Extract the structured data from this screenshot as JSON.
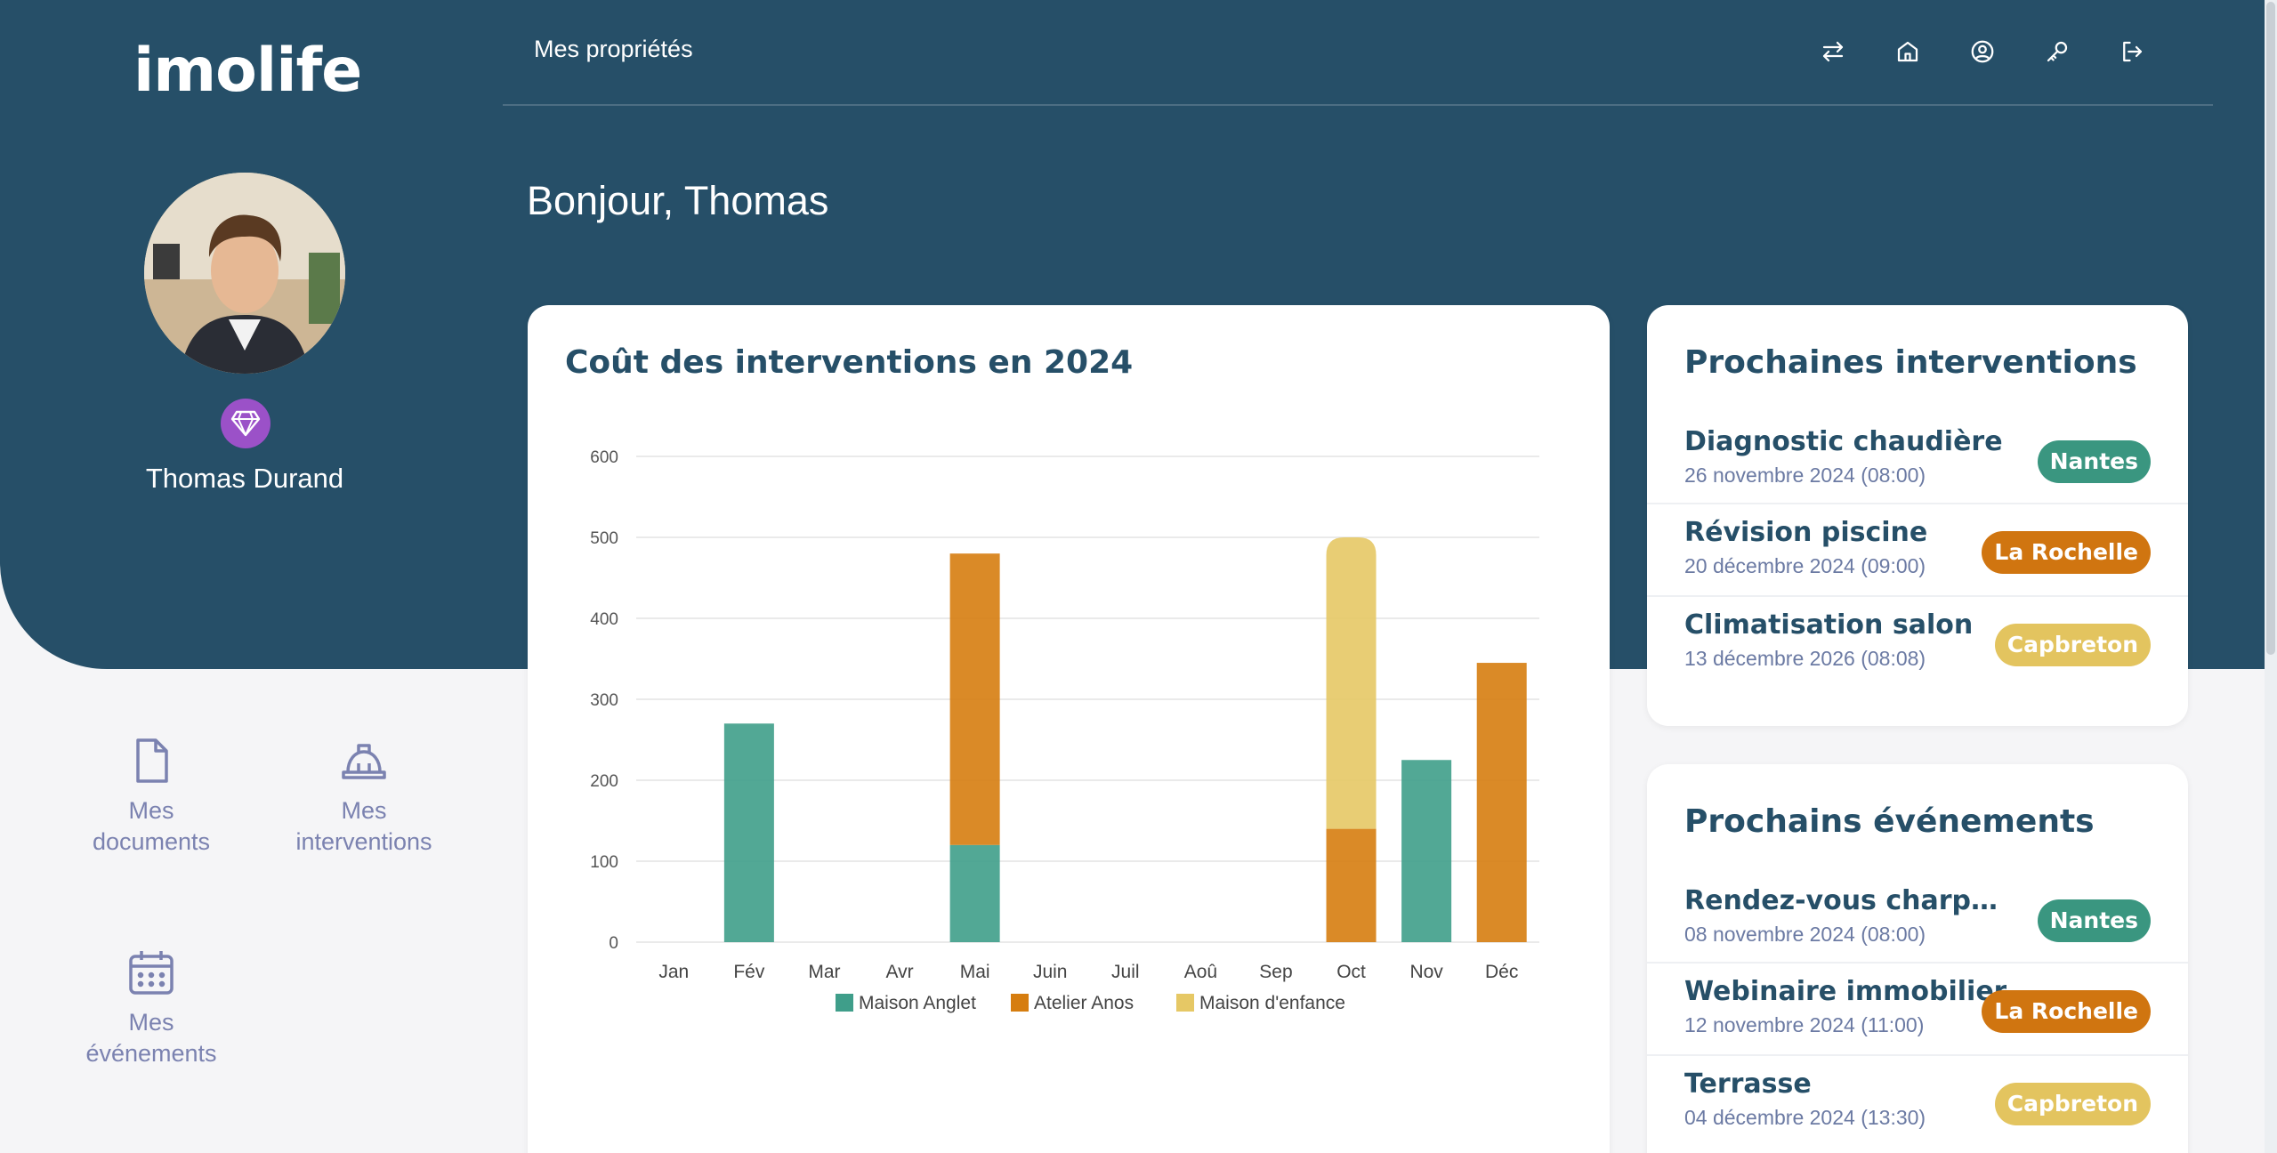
{
  "brand": {
    "logo_text": "imolife"
  },
  "user": {
    "name": "Thomas Durand"
  },
  "topnav": {
    "title": "Mes propriétés",
    "icons": [
      "swap-icon",
      "home-icon",
      "account-icon",
      "key-icon",
      "logout-icon"
    ]
  },
  "greeting": "Bonjour, Thomas",
  "sidebar": {
    "items": [
      {
        "label_line1": "Mes",
        "label_line2": "documents",
        "icon": "document-icon"
      },
      {
        "label_line1": "Mes",
        "label_line2": "interventions",
        "icon": "hard-hat-icon"
      },
      {
        "label_line1": "Mes",
        "label_line2": "événements",
        "icon": "calendar-icon"
      }
    ]
  },
  "chart_card": {
    "title": "Coût des interventions en 2024"
  },
  "chart_data": {
    "type": "bar",
    "stacked": true,
    "categories": [
      "Jan",
      "Fév",
      "Mar",
      "Avr",
      "Mai",
      "Juin",
      "Juil",
      "Aoû",
      "Sep",
      "Oct",
      "Nov",
      "Déc"
    ],
    "series": [
      {
        "name": "Maison Anglet",
        "color": "#3f9e8a",
        "values": [
          0,
          270,
          0,
          0,
          120,
          0,
          0,
          0,
          0,
          0,
          225,
          0
        ]
      },
      {
        "name": "Atelier Anos",
        "color": "#d67d0f",
        "values": [
          0,
          0,
          0,
          0,
          360,
          0,
          0,
          0,
          0,
          140,
          0,
          345
        ]
      },
      {
        "name": "Maison d'enfance",
        "color": "#e6c865",
        "values": [
          0,
          0,
          0,
          0,
          0,
          0,
          0,
          0,
          0,
          360,
          0,
          0
        ]
      }
    ],
    "yticks": [
      "0",
      "100",
      "200",
      "300",
      "400",
      "500",
      "600"
    ],
    "ylim": [
      0,
      600
    ],
    "grid": true,
    "legend": "bottom"
  },
  "interventions": {
    "title": "Prochaines interventions",
    "items": [
      {
        "title": "Diagnostic chaudière",
        "date": "26 novembre 2024 (08:00)",
        "tag": "Nantes",
        "color": "#3a9680"
      },
      {
        "title": "Révision piscine",
        "date": "20 décembre 2024 (09:00)",
        "tag": "La Rochelle",
        "color": "#d07510"
      },
      {
        "title": "Climatisation salon",
        "date": "13 décembre 2026 (08:08)",
        "tag": "Capbreton",
        "color": "#e3c45f"
      }
    ]
  },
  "events": {
    "title": "Prochains événements",
    "items": [
      {
        "title": "Rendez-vous charpentier",
        "date": "08 novembre 2024 (08:00)",
        "tag": "Nantes",
        "color": "#3a9680"
      },
      {
        "title": "Webinaire immobilier",
        "date": "12 novembre 2024 (11:00)",
        "tag": "La Rochelle",
        "color": "#d07510"
      },
      {
        "title": "Terrasse",
        "date": "04 décembre 2024 (13:30)",
        "tag": "Capbreton",
        "color": "#e3c45f"
      }
    ]
  }
}
